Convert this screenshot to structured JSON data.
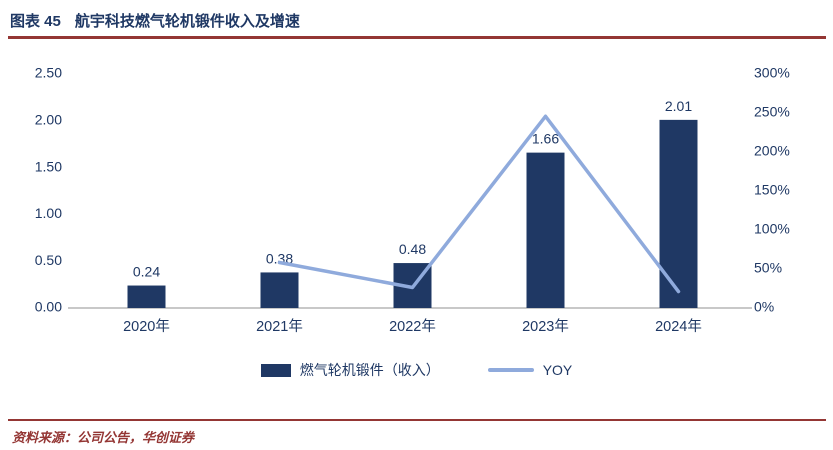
{
  "page": {
    "figure_label": "图表 45",
    "figure_title": "航宇科技燃气轮机锻件收入及增速",
    "source": "资料来源：公司公告，华创证券"
  },
  "colors": {
    "navy": "#1F3864",
    "bar": "#1F3864",
    "line": "#8FAADC",
    "rule": "#943634",
    "source_text": "#943634",
    "axis_text": "#1F3864",
    "baseline": "#A6A6A6"
  },
  "chart_data": {
    "type": "bar+line",
    "title": "航宇科技燃气轮机锻件收入及增速",
    "categories": [
      "2020年",
      "2021年",
      "2022年",
      "2023年",
      "2024年"
    ],
    "series": [
      {
        "name": "燃气轮机锻件（收入）",
        "type": "bar",
        "axis": "left",
        "values": [
          0.24,
          0.38,
          0.48,
          1.66,
          2.01
        ]
      },
      {
        "name": "YOY",
        "type": "line",
        "axis": "right",
        "values": [
          null,
          58.3,
          26.3,
          245.8,
          21.1
        ]
      }
    ],
    "bar_labels": [
      "0.24",
      "0.38",
      "0.48",
      "1.66",
      "2.01"
    ],
    "left_axis": {
      "min": 0,
      "max": 2.5,
      "ticks": [
        "2.50",
        "2.00",
        "1.50",
        "1.00",
        "0.50",
        "0.00"
      ]
    },
    "right_axis": {
      "min": 0,
      "max": 300,
      "ticks": [
        "300%",
        "250%",
        "200%",
        "150%",
        "100%",
        "50%",
        "0%"
      ]
    },
    "grid": false,
    "legend_position": "bottom"
  }
}
